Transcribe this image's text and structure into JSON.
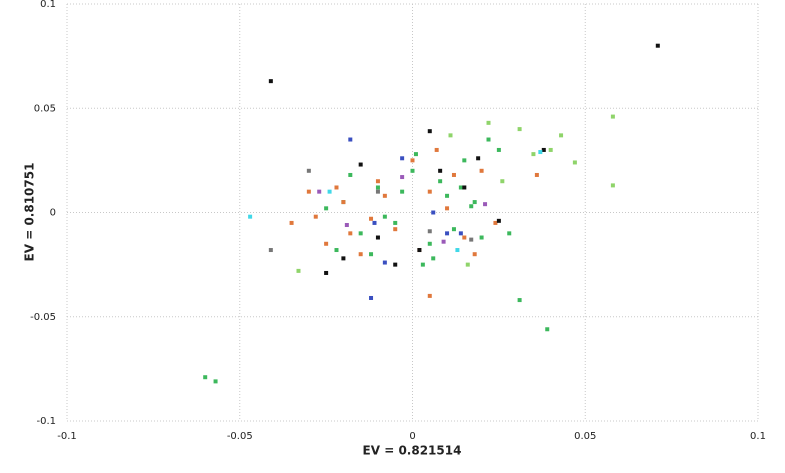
{
  "chart_data": {
    "type": "scatter",
    "xlabel": "EV = 0.821514",
    "ylabel": "EV = 0.810751",
    "xlim": [
      -0.1,
      0.1
    ],
    "ylim": [
      -0.1,
      0.1
    ],
    "xticks": [
      -0.1,
      -0.05,
      0,
      0.05,
      0.1
    ],
    "yticks": [
      -0.1,
      -0.05,
      0,
      0.05,
      0.1
    ],
    "grid": true,
    "series": [
      {
        "color": "#3cb85c",
        "x": [
          -0.06,
          -0.057,
          0.039,
          0.031,
          -0.02,
          -0.015,
          -0.01,
          -0.005,
          0,
          0.005,
          0.01,
          0.015,
          0.02,
          0.025,
          -0.025,
          -0.012,
          0.008,
          0.018,
          0.003,
          -0.003,
          0.012,
          -0.018,
          0.022,
          0.028,
          -0.008,
          0.001,
          0.014,
          -0.022,
          0.006,
          0.017
        ],
        "y": [
          -0.079,
          -0.081,
          -0.056,
          -0.042,
          0.005,
          -0.01,
          0.012,
          -0.005,
          0.02,
          -0.015,
          0.008,
          0.025,
          -0.012,
          0.03,
          0.002,
          -0.02,
          0.015,
          0.005,
          -0.025,
          0.01,
          -0.008,
          0.018,
          0.035,
          -0.01,
          -0.002,
          0.028,
          0.012,
          -0.018,
          -0.022,
          0.003
        ]
      },
      {
        "color": "#e0783c",
        "x": [
          -0.035,
          -0.03,
          -0.025,
          -0.02,
          -0.015,
          -0.01,
          -0.005,
          0,
          0.005,
          0.01,
          0.015,
          0.02,
          -0.028,
          -0.018,
          -0.008,
          0.002,
          0.012,
          0.024,
          0.036,
          0.005,
          -0.012,
          -0.022,
          0.018,
          0.007
        ],
        "y": [
          -0.005,
          0.01,
          -0.015,
          0.005,
          -0.02,
          0.015,
          -0.008,
          0.025,
          -0.04,
          0.002,
          -0.012,
          0.02,
          -0.002,
          -0.01,
          0.008,
          -0.018,
          0.018,
          -0.005,
          0.018,
          0.01,
          -0.003,
          0.012,
          -0.02,
          0.03
        ]
      },
      {
        "color": "#111111",
        "x": [
          -0.041,
          0.071,
          -0.025,
          -0.015,
          -0.005,
          0.005,
          0.015,
          0.025,
          -0.01,
          0.008,
          0.002,
          0.019,
          -0.02,
          0.038
        ],
        "y": [
          0.063,
          0.08,
          -0.029,
          0.023,
          -0.025,
          0.039,
          0.012,
          -0.004,
          -0.012,
          0.02,
          -0.018,
          0.026,
          -0.022,
          0.03
        ]
      },
      {
        "color": "#3a4fc0",
        "x": [
          -0.012,
          -0.008,
          0.014,
          -0.018,
          0.006,
          0.01,
          -0.003,
          -0.011
        ],
        "y": [
          -0.041,
          -0.024,
          -0.01,
          0.035,
          0,
          -0.01,
          0.026,
          -0.005
        ]
      },
      {
        "color": "#8fd46a",
        "x": [
          0.058,
          0.058,
          0.031,
          0.043,
          0.04,
          0.022,
          -0.033,
          0.011,
          0.026,
          0.035,
          0.047,
          0.016
        ],
        "y": [
          0.046,
          0.013,
          0.04,
          0.037,
          0.03,
          0.043,
          -0.028,
          0.037,
          0.015,
          0.028,
          0.024,
          -0.025
        ]
      },
      {
        "color": "#40d8e8",
        "x": [
          -0.047,
          0.037,
          0.013,
          -0.024
        ],
        "y": [
          -0.002,
          0.029,
          -0.018,
          0.01
        ]
      },
      {
        "color": "#9a5ab8",
        "x": [
          -0.027,
          -0.019,
          -0.003,
          0.009,
          0.021
        ],
        "y": [
          0.01,
          -0.006,
          0.017,
          -0.014,
          0.004
        ]
      },
      {
        "color": "#777777",
        "x": [
          -0.041,
          -0.03,
          0.005,
          -0.01,
          0.017
        ],
        "y": [
          -0.018,
          0.02,
          -0.009,
          0.01,
          -0.013
        ]
      }
    ]
  }
}
